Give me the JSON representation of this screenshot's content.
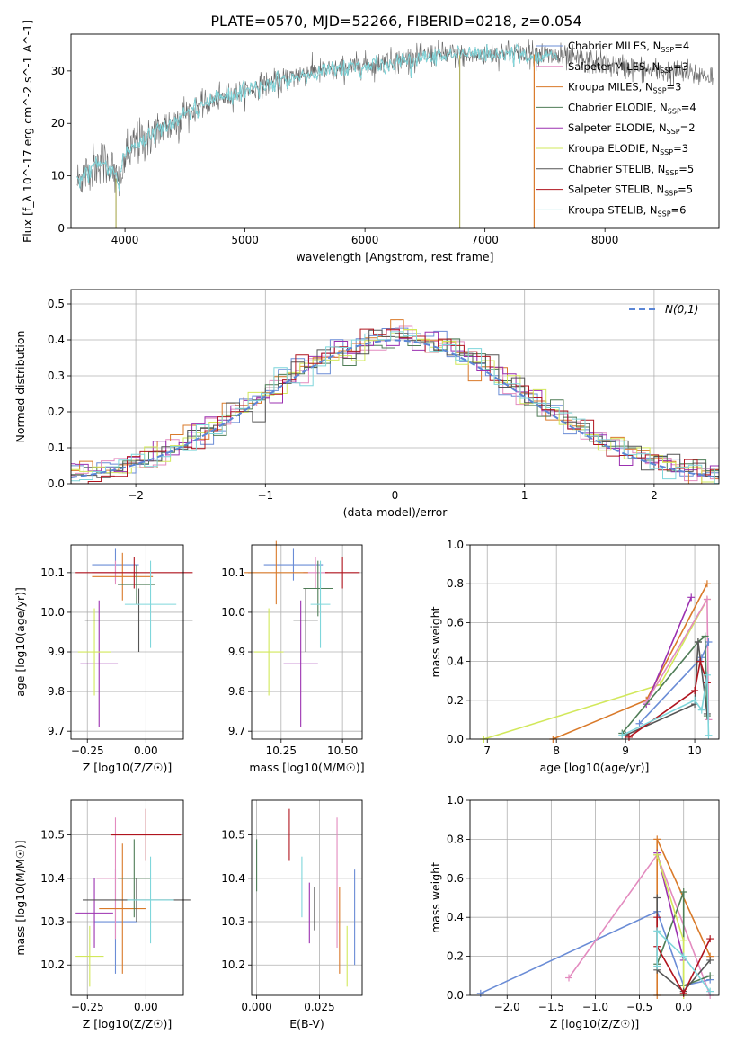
{
  "figure_title": "PLATE=0570, MJD=52266, FIBERID=0218, z=0.054",
  "colors": {
    "Chabrier MILES": "#6a8cd6",
    "Salpeter MILES": "#e38bbf",
    "Kroupa MILES": "#d97a2a",
    "Chabrier ELODIE": "#4f7d57",
    "Salpeter ELODIE": "#9b30b0",
    "Kroupa ELODIE": "#d2e85b",
    "Chabrier STELIB": "#555555",
    "Salpeter STELIB": "#b0141e",
    "Kroupa STELIB": "#7fd6db"
  },
  "chart_data": [
    {
      "id": "spectrum",
      "type": "line",
      "xlabel": "wavelength [Angstrom, rest frame]",
      "ylabel": "Flux [f_λ 10^-17 erg cm^-2 s^-1 A^-1]",
      "xlim": [
        3550,
        8950
      ],
      "ylim": [
        0,
        37
      ],
      "xticks": [
        4000,
        5000,
        6000,
        7000,
        8000
      ],
      "yticks": [
        0,
        10,
        20,
        30
      ],
      "legend_position": "upper-right",
      "series": [
        {
          "name": "Chabrier MILES",
          "nssp": "4"
        },
        {
          "name": "Salpeter MILES",
          "nssp": "3"
        },
        {
          "name": "Kroupa MILES",
          "nssp": "3"
        },
        {
          "name": "Chabrier ELODIE",
          "nssp": "4"
        },
        {
          "name": "Salpeter ELODIE",
          "nssp": "2"
        },
        {
          "name": "Kroupa ELODIE",
          "nssp": "3"
        },
        {
          "name": "Chabrier STELIB",
          "nssp": "5"
        },
        {
          "name": "Salpeter STELIB",
          "nssp": "5"
        },
        {
          "name": "Kroupa STELIB",
          "nssp": "6"
        }
      ],
      "continuum": [
        [
          3600,
          9
        ],
        [
          3700,
          11
        ],
        [
          3800,
          13
        ],
        [
          3900,
          11
        ],
        [
          3950,
          8
        ],
        [
          4000,
          14
        ],
        [
          4100,
          16
        ],
        [
          4200,
          17.5
        ],
        [
          4300,
          19
        ],
        [
          4400,
          20
        ],
        [
          4500,
          22
        ],
        [
          4700,
          24
        ],
        [
          4900,
          25.5
        ],
        [
          5100,
          27
        ],
        [
          5300,
          28
        ],
        [
          5500,
          29.5
        ],
        [
          5700,
          30
        ],
        [
          6000,
          31
        ],
        [
          6300,
          32
        ],
        [
          6600,
          33
        ],
        [
          6900,
          33
        ],
        [
          7200,
          33.5
        ],
        [
          7500,
          33
        ],
        [
          7800,
          32
        ],
        [
          8100,
          31
        ],
        [
          8400,
          30
        ],
        [
          8700,
          29.5
        ],
        [
          8900,
          29
        ]
      ]
    },
    {
      "id": "residuals",
      "type": "histogram",
      "xlabel": "(data-model)/error",
      "ylabel": "Normed distribution",
      "xlim": [
        -2.5,
        2.5
      ],
      "ylim": [
        0,
        0.54
      ],
      "xticks": [
        -2,
        -1,
        0,
        1,
        2
      ],
      "yticks": [
        0.0,
        0.1,
        0.2,
        0.3,
        0.4,
        0.5
      ],
      "grid": true,
      "legend": "N(0,1)",
      "legend_position": "upper-right",
      "bin_width": 0.1
    },
    {
      "id": "age_vs_Z",
      "type": "errorbar",
      "xlabel": "Z [log10(Z/Z☉)]",
      "ylabel": "age [log10(age/yr)]",
      "xlim": [
        -0.32,
        0.16
      ],
      "ylim": [
        9.68,
        10.17
      ],
      "xticks": [
        -0.25,
        0.0
      ],
      "yticks": [
        9.7,
        9.8,
        9.9,
        10.0,
        10.1
      ],
      "grid": true,
      "points": [
        {
          "series": "Chabrier MILES",
          "x": -0.13,
          "xerr": 0.1,
          "y": 10.12,
          "yerr": 0.04
        },
        {
          "series": "Salpeter MILES",
          "x": -0.13,
          "xerr": 0.1,
          "y": 10.1,
          "yerr": 0.03
        },
        {
          "series": "Kroupa MILES",
          "x": -0.1,
          "xerr": 0.13,
          "y": 10.09,
          "yerr": 0.06
        },
        {
          "series": "Chabrier ELODIE",
          "x": -0.04,
          "xerr": 0.08,
          "y": 10.07,
          "yerr": 0.05
        },
        {
          "series": "Salpeter ELODIE",
          "x": -0.2,
          "xerr": 0.08,
          "y": 9.87,
          "yerr": 0.16
        },
        {
          "series": "Kroupa ELODIE",
          "x": -0.22,
          "xerr": 0.07,
          "y": 9.9,
          "yerr": 0.11
        },
        {
          "series": "Chabrier STELIB",
          "x": -0.03,
          "xerr": 0.23,
          "y": 9.98,
          "yerr": 0.08
        },
        {
          "series": "Salpeter STELIB",
          "x": -0.05,
          "xerr": 0.25,
          "y": 10.1,
          "yerr": 0.04
        },
        {
          "series": "Kroupa STELIB",
          "x": 0.02,
          "xerr": 0.11,
          "y": 10.02,
          "yerr": 0.11
        }
      ]
    },
    {
      "id": "age_vs_mass",
      "type": "errorbar",
      "xlabel": "mass [log10(M/M☉)]",
      "ylabel": "",
      "xlim": [
        10.13,
        10.58
      ],
      "ylim": [
        9.68,
        10.17
      ],
      "xticks": [
        10.25,
        10.5
      ],
      "yticks": [
        9.7,
        9.8,
        9.9,
        10.0,
        10.1
      ],
      "grid": true,
      "points": [
        {
          "series": "Chabrier MILES",
          "x": 10.3,
          "xerr": 0.12,
          "y": 10.12,
          "yerr": 0.04
        },
        {
          "series": "Salpeter MILES",
          "x": 10.39,
          "xerr": 0.05,
          "y": 10.1,
          "yerr": 0.04
        },
        {
          "series": "Kroupa MILES",
          "x": 10.23,
          "xerr": 0.13,
          "y": 10.1,
          "yerr": 0.08
        },
        {
          "series": "Chabrier ELODIE",
          "x": 10.4,
          "xerr": 0.06,
          "y": 10.06,
          "yerr": 0.07
        },
        {
          "series": "Salpeter ELODIE",
          "x": 10.33,
          "xerr": 0.07,
          "y": 9.87,
          "yerr": 0.16
        },
        {
          "series": "Kroupa ELODIE",
          "x": 10.2,
          "xerr": 0.06,
          "y": 9.9,
          "yerr": 0.11
        },
        {
          "series": "Chabrier STELIB",
          "x": 10.35,
          "xerr": 0.05,
          "y": 9.98,
          "yerr": 0.08
        },
        {
          "series": "Salpeter STELIB",
          "x": 10.5,
          "xerr": 0.07,
          "y": 10.1,
          "yerr": 0.04
        },
        {
          "series": "Kroupa STELIB",
          "x": 10.41,
          "xerr": 0.04,
          "y": 10.02,
          "yerr": 0.11
        }
      ]
    },
    {
      "id": "weight_vs_age",
      "type": "line",
      "xlabel": "age [log10(age/yr)]",
      "ylabel": "mass weight",
      "xlim": [
        6.75,
        10.35
      ],
      "ylim": [
        0,
        1.0
      ],
      "xticks": [
        7,
        8,
        9,
        10
      ],
      "yticks": [
        0.0,
        0.2,
        0.4,
        0.6,
        0.8,
        1.0
      ],
      "grid": true,
      "series": [
        {
          "name": "Kroupa ELODIE",
          "points": [
            [
              6.95,
              0.0
            ],
            [
              9.5,
              0.28
            ],
            [
              10.18,
              0.72
            ]
          ]
        },
        {
          "name": "Kroupa MILES",
          "points": [
            [
              7.95,
              0.0
            ],
            [
              9.3,
              0.2
            ],
            [
              10.18,
              0.8
            ]
          ]
        },
        {
          "name": "Salpeter ELODIE",
          "points": [
            [
              9.3,
              0.18
            ],
            [
              9.95,
              0.73
            ]
          ]
        },
        {
          "name": "Salpeter MILES",
          "points": [
            [
              9.3,
              0.19
            ],
            [
              10.18,
              0.72
            ],
            [
              10.2,
              0.1
            ]
          ]
        },
        {
          "name": "Chabrier MILES",
          "points": [
            [
              9.2,
              0.08
            ],
            [
              10.1,
              0.42
            ],
            [
              10.2,
              0.5
            ]
          ]
        },
        {
          "name": "Chabrier ELODIE",
          "points": [
            [
              8.95,
              0.03
            ],
            [
              10.05,
              0.5
            ],
            [
              10.15,
              0.53
            ],
            [
              10.18,
              0.12
            ]
          ]
        },
        {
          "name": "Chabrier STELIB",
          "points": [
            [
              9.0,
              0.02
            ],
            [
              10.0,
              0.18
            ],
            [
              10.05,
              0.5
            ],
            [
              10.18,
              0.13
            ]
          ]
        },
        {
          "name": "Salpeter STELIB",
          "points": [
            [
              9.05,
              0.01
            ],
            [
              10.0,
              0.25
            ],
            [
              10.08,
              0.4
            ],
            [
              10.18,
              0.29
            ]
          ]
        },
        {
          "name": "Kroupa STELIB",
          "points": [
            [
              8.95,
              0.02
            ],
            [
              10.0,
              0.2
            ],
            [
              10.1,
              0.15
            ],
            [
              10.18,
              0.33
            ],
            [
              10.2,
              0.02
            ]
          ]
        }
      ]
    },
    {
      "id": "mass_vs_Z",
      "type": "errorbar",
      "xlabel": "Z [log10(Z/Z☉)]",
      "ylabel": "mass [log10(M/M☉)]",
      "xlim": [
        -0.32,
        0.16
      ],
      "ylim": [
        10.13,
        10.58
      ],
      "xticks": [
        -0.25,
        0.0
      ],
      "yticks": [
        10.2,
        10.3,
        10.4,
        10.5
      ],
      "grid": true,
      "points": [
        {
          "series": "Chabrier MILES",
          "x": -0.13,
          "xerr": 0.09,
          "y": 10.3,
          "yerr": 0.12
        },
        {
          "series": "Salpeter MILES",
          "x": -0.13,
          "xerr": 0.08,
          "y": 10.4,
          "yerr": 0.14
        },
        {
          "series": "Kroupa MILES",
          "x": -0.1,
          "xerr": 0.1,
          "y": 10.33,
          "yerr": 0.15
        },
        {
          "series": "Chabrier ELODIE",
          "x": -0.05,
          "xerr": 0.07,
          "y": 10.4,
          "yerr": 0.09
        },
        {
          "series": "Salpeter ELODIE",
          "x": -0.22,
          "xerr": 0.08,
          "y": 10.32,
          "yerr": 0.08
        },
        {
          "series": "Kroupa ELODIE",
          "x": -0.24,
          "xerr": 0.06,
          "y": 10.22,
          "yerr": 0.07
        },
        {
          "series": "Chabrier STELIB",
          "x": -0.04,
          "xerr": 0.23,
          "y": 10.35,
          "yerr": 0.05
        },
        {
          "series": "Salpeter STELIB",
          "x": 0.0,
          "xerr": 0.15,
          "y": 10.5,
          "yerr": 0.06
        },
        {
          "series": "Kroupa STELIB",
          "x": 0.02,
          "xerr": 0.1,
          "y": 10.35,
          "yerr": 0.1
        }
      ]
    },
    {
      "id": "mass_vs_EBV",
      "type": "errorbar",
      "xlabel": "E(B-V)",
      "ylabel": "",
      "xlim": [
        -0.002,
        0.042
      ],
      "ylim": [
        10.13,
        10.58
      ],
      "xticks": [
        0.0,
        0.025
      ],
      "yticks": [
        10.2,
        10.3,
        10.4,
        10.5
      ],
      "grid": true,
      "points": [
        {
          "series": "Chabrier ELODIE",
          "x": 0.0,
          "y": 10.43,
          "yerr": 0.06
        },
        {
          "series": "Salpeter STELIB",
          "x": 0.013,
          "y": 10.5,
          "yerr": 0.06
        },
        {
          "series": "Kroupa STELIB",
          "x": 0.018,
          "y": 10.38,
          "yerr": 0.07
        },
        {
          "series": "Salpeter ELODIE",
          "x": 0.021,
          "y": 10.32,
          "yerr": 0.07
        },
        {
          "series": "Chabrier STELIB",
          "x": 0.023,
          "y": 10.33,
          "yerr": 0.05
        },
        {
          "series": "Salpeter MILES",
          "x": 0.032,
          "y": 10.39,
          "yerr": 0.15
        },
        {
          "series": "Kroupa MILES",
          "x": 0.033,
          "y": 10.28,
          "yerr": 0.1
        },
        {
          "series": "Kroupa ELODIE",
          "x": 0.036,
          "y": 10.22,
          "yerr": 0.07
        },
        {
          "series": "Chabrier MILES",
          "x": 0.039,
          "y": 10.31,
          "yerr": 0.11
        }
      ]
    },
    {
      "id": "weight_vs_Z",
      "type": "line",
      "xlabel": "Z [log10(Z/Z☉)]",
      "ylabel": "mass weight",
      "xlim": [
        -2.42,
        0.4
      ],
      "ylim": [
        0,
        1.0
      ],
      "xticks": [
        -2.0,
        -1.5,
        -1.0,
        -0.5,
        0.0
      ],
      "yticks": [
        0.0,
        0.2,
        0.4,
        0.6,
        0.8,
        1.0
      ],
      "grid": true,
      "series": [
        {
          "name": "Chabrier MILES",
          "points": [
            [
              -2.3,
              0.01
            ],
            [
              -0.3,
              0.43
            ],
            [
              0.0,
              0.05
            ],
            [
              0.3,
              0.08
            ]
          ]
        },
        {
          "name": "Salpeter MILES",
          "points": [
            [
              -1.3,
              0.09
            ],
            [
              -0.3,
              0.72
            ],
            [
              0.3,
              0.0
            ]
          ]
        },
        {
          "name": "Kroupa MILES",
          "points": [
            [
              -0.3,
              0.0
            ],
            [
              -0.3,
              0.8
            ],
            [
              0.3,
              0.2
            ]
          ]
        },
        {
          "name": "Chabrier ELODIE",
          "points": [
            [
              -0.3,
              0.16
            ],
            [
              0.0,
              0.53
            ],
            [
              0.0,
              0.05
            ],
            [
              0.3,
              0.1
            ]
          ]
        },
        {
          "name": "Salpeter ELODIE",
          "points": [
            [
              -0.3,
              0.73
            ],
            [
              0.0,
              0.18
            ]
          ]
        },
        {
          "name": "Kroupa ELODIE",
          "points": [
            [
              -0.3,
              0.72
            ],
            [
              0.0,
              0.28
            ],
            [
              0.0,
              0.0
            ]
          ]
        },
        {
          "name": "Chabrier STELIB",
          "points": [
            [
              -0.3,
              0.5
            ],
            [
              -0.3,
              0.13
            ],
            [
              0.0,
              0.02
            ],
            [
              0.3,
              0.18
            ]
          ]
        },
        {
          "name": "Salpeter STELIB",
          "points": [
            [
              -0.3,
              0.4
            ],
            [
              -0.3,
              0.25
            ],
            [
              0.0,
              0.01
            ],
            [
              0.3,
              0.29
            ]
          ]
        },
        {
          "name": "Kroupa STELIB",
          "points": [
            [
              -0.3,
              0.15
            ],
            [
              -0.3,
              0.33
            ],
            [
              0.0,
              0.2
            ],
            [
              0.3,
              0.02
            ]
          ]
        }
      ]
    }
  ]
}
